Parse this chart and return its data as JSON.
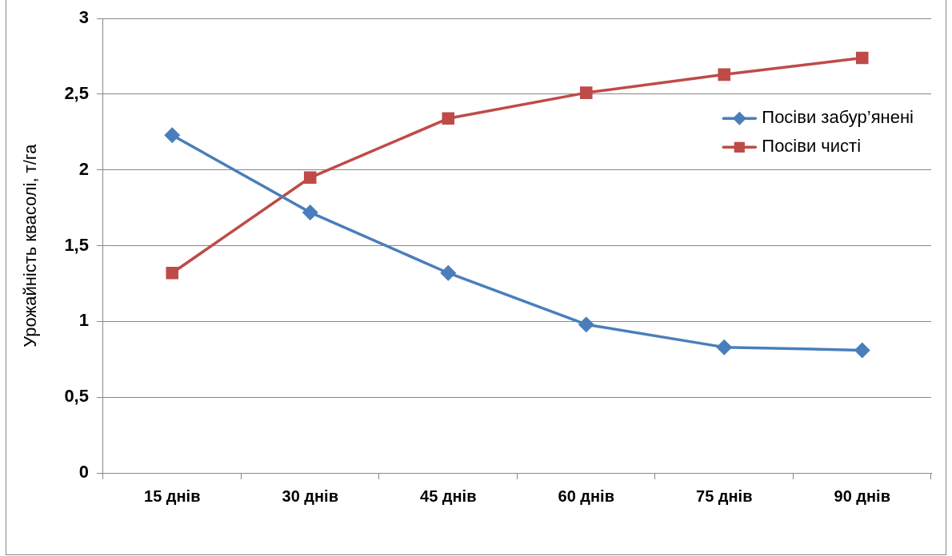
{
  "chart_data": {
    "type": "line",
    "ylabel": "Урожайність квасолі, т/га",
    "categories": [
      "15 днів",
      "30 днів",
      "45 днів",
      "60 днів",
      "75 днів",
      "90 днів"
    ],
    "series": [
      {
        "name": "Посіви забур’янені",
        "color": "#4a7ebb",
        "marker": "diamond",
        "values": [
          2.23,
          1.72,
          1.32,
          0.98,
          0.83,
          0.81
        ]
      },
      {
        "name": "Посіви чисті",
        "color": "#be4b48",
        "marker": "square",
        "values": [
          1.32,
          1.95,
          2.34,
          2.51,
          2.63,
          2.74
        ]
      }
    ],
    "ylim": [
      0,
      3
    ],
    "yticks": [
      0,
      {
        "value": 0.5,
        "label": "0,5"
      },
      1,
      {
        "value": 1.5,
        "label": "1,5"
      },
      2,
      {
        "value": 2.5,
        "label": "2,5"
      },
      3
    ],
    "grid": "y",
    "legend": "right",
    "line_style": "solid"
  }
}
